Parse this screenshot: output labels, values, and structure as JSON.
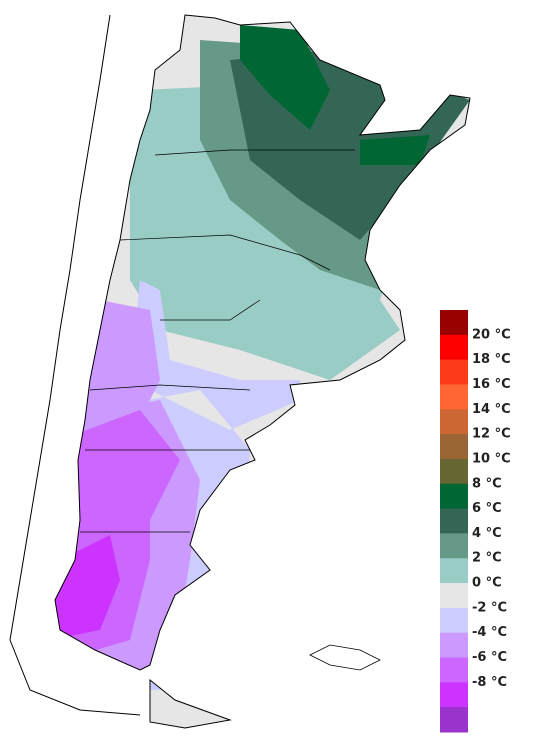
{
  "legend": {
    "labels": [
      "20 °C",
      "18 °C",
      "16 °C",
      "14 °C",
      "12 °C",
      "10 °C",
      "8 °C",
      "6 °C",
      "4 °C",
      "2 °C",
      "0 °C",
      "-2 °C",
      "-4 °C",
      "-6 °C",
      "-8 °C"
    ],
    "colors": [
      "#990000",
      "#ff0000",
      "#ff3a1a",
      "#ff6633",
      "#cc6633",
      "#996633",
      "#666633",
      "#006633",
      "#336655",
      "#669988",
      "#99ccc4",
      "#e6e6e6",
      "#ccccff",
      "#cc99ff",
      "#cc66ff",
      "#cc33ff",
      "#9933cc"
    ]
  }
}
